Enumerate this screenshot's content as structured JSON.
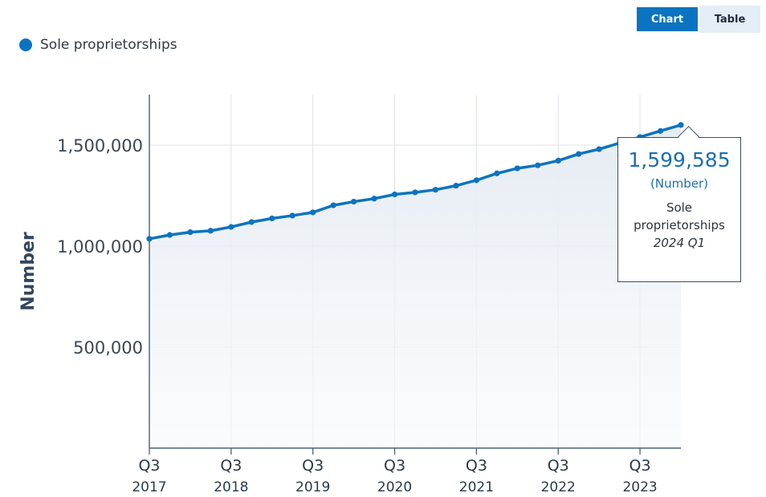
{
  "controls": {
    "chart_label": "Chart",
    "table_label": "Table"
  },
  "legend": {
    "label": "Sole proprietorships",
    "color": "#0b73bf"
  },
  "tooltip": {
    "value": "1,599,585",
    "unit": "(Number)",
    "series": "Sole proprietorships",
    "period": "2024 Q1"
  },
  "chart_data": {
    "type": "area",
    "ylabel": "Number",
    "xlabel": "",
    "ylim": [
      0,
      1750000
    ],
    "yticks": [
      500000,
      1000000,
      1500000
    ],
    "ytick_labels": [
      "500,000",
      "1,000,000",
      "1,500,000"
    ],
    "xticks": [
      {
        "period": "2017 Q3",
        "line1": "Q3",
        "line2": "2017"
      },
      {
        "period": "2018 Q3",
        "line1": "Q3",
        "line2": "2018"
      },
      {
        "period": "2019 Q3",
        "line1": "Q3",
        "line2": "2019"
      },
      {
        "period": "2020 Q3",
        "line1": "Q3",
        "line2": "2020"
      },
      {
        "period": "2021 Q3",
        "line1": "Q3",
        "line2": "2021"
      },
      {
        "period": "2022 Q3",
        "line1": "Q3",
        "line2": "2022"
      },
      {
        "period": "2023 Q3",
        "line1": "Q3",
        "line2": "2023"
      }
    ],
    "grid": true,
    "legend": "top-left",
    "series": [
      {
        "name": "Sole proprietorships",
        "color": "#0b73bf",
        "x": [
          "2017 Q3",
          "2017 Q4",
          "2018 Q1",
          "2018 Q2",
          "2018 Q3",
          "2018 Q4",
          "2019 Q1",
          "2019 Q2",
          "2019 Q3",
          "2019 Q4",
          "2020 Q1",
          "2020 Q2",
          "2020 Q3",
          "2020 Q4",
          "2021 Q1",
          "2021 Q2",
          "2021 Q3",
          "2021 Q4",
          "2022 Q1",
          "2022 Q2",
          "2022 Q3",
          "2022 Q4",
          "2023 Q1",
          "2023 Q2",
          "2023 Q3",
          "2023 Q4",
          "2024 Q1"
        ],
        "values": [
          1036000,
          1055000,
          1069000,
          1076000,
          1095000,
          1119000,
          1137000,
          1151000,
          1167000,
          1202000,
          1220000,
          1235000,
          1256000,
          1266000,
          1279000,
          1299000,
          1326000,
          1360000,
          1385000,
          1400000,
          1423000,
          1456000,
          1480000,
          1510000,
          1540000,
          1570000,
          1599585
        ]
      }
    ],
    "highlighted_point": {
      "x": "2024 Q1",
      "value": 1599585
    }
  }
}
